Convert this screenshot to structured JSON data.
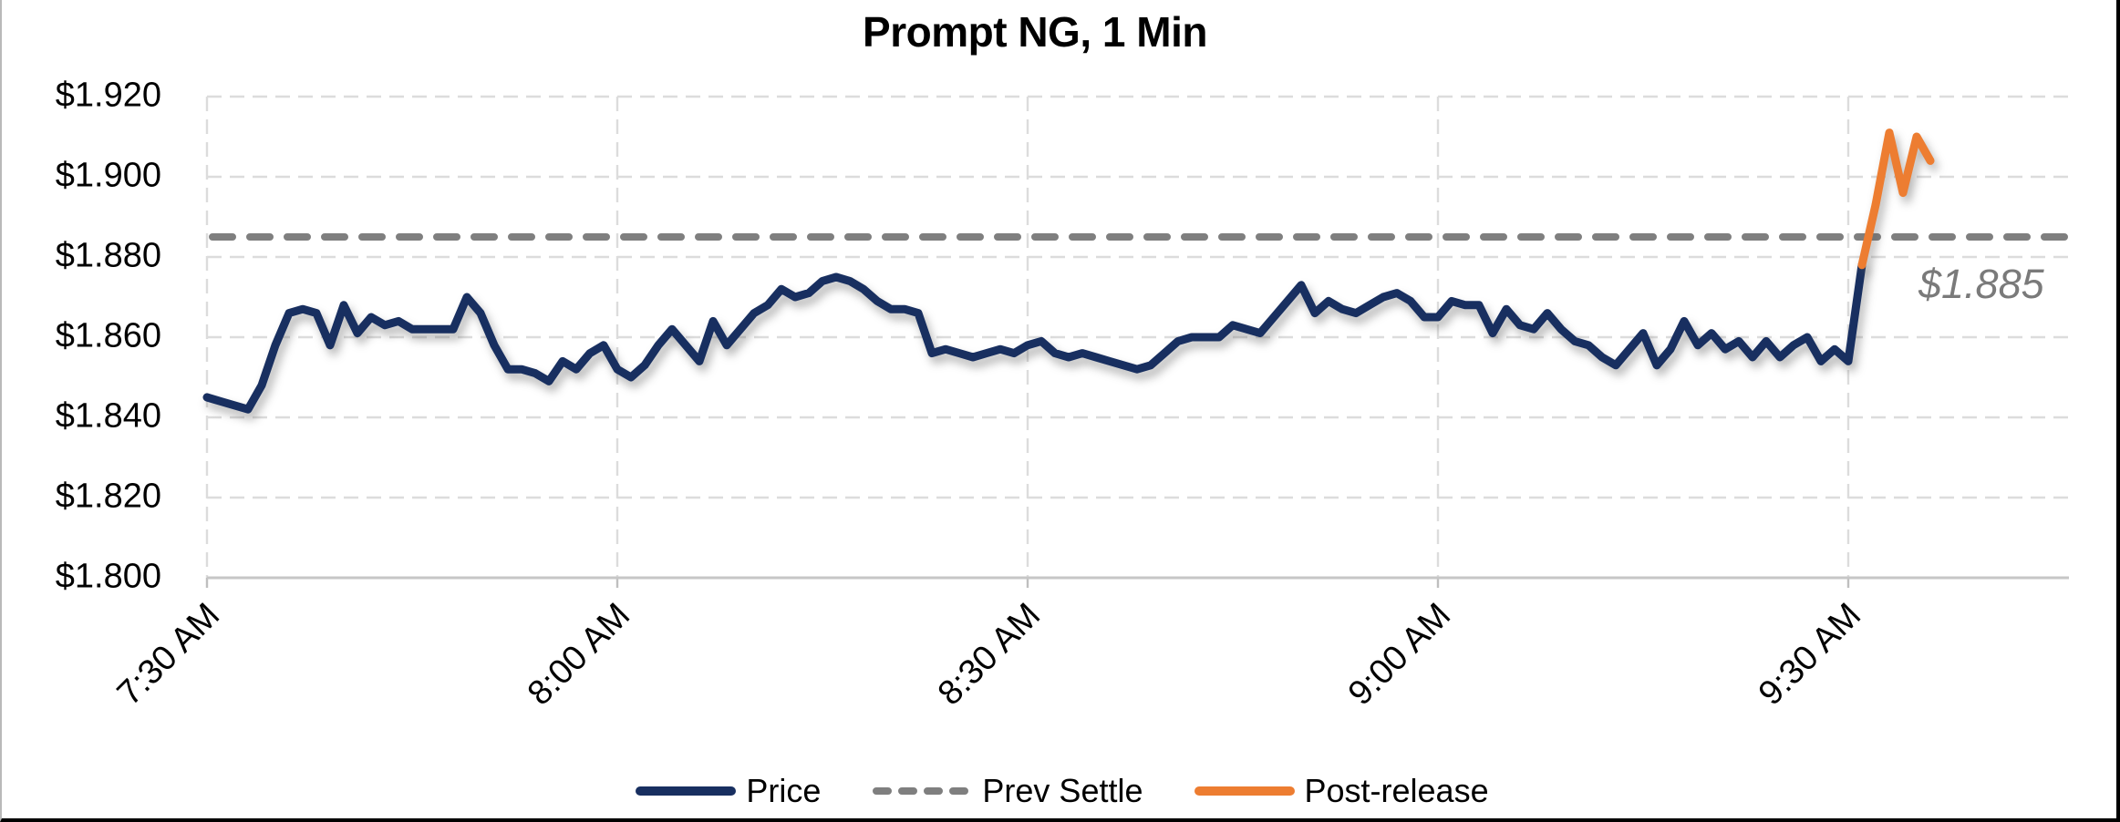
{
  "chart_data": {
    "type": "line",
    "title": "Prompt NG, 1 Min",
    "y_axis": {
      "min": 1.8,
      "max": 1.92,
      "step": 0.02,
      "tick_labels": [
        "$1.920",
        "$1.900",
        "$1.880",
        "$1.860",
        "$1.840",
        "$1.820",
        "$1.800"
      ]
    },
    "x_axis": {
      "tick_labels": [
        "7:30 AM",
        "8:00 AM",
        "8:30 AM",
        "9:00 AM",
        "9:30 AM"
      ],
      "minutes_per_point": 1,
      "minutes_per_tick": 30
    },
    "grid": {
      "horizontal": "dashed",
      "vertical": "dashed",
      "color": "#dcdcdc"
    },
    "prev_settle": {
      "value": 1.885,
      "annotation": "$1.885",
      "color": "#7f7f7f"
    },
    "series": [
      {
        "name": "Price",
        "color": "#182f60",
        "style": "solid",
        "start": "7:30 AM",
        "start_index": 0,
        "values": [
          1.845,
          1.844,
          1.843,
          1.842,
          1.848,
          1.858,
          1.866,
          1.867,
          1.866,
          1.858,
          1.868,
          1.861,
          1.865,
          1.863,
          1.864,
          1.862,
          1.862,
          1.862,
          1.862,
          1.87,
          1.866,
          1.858,
          1.852,
          1.852,
          1.851,
          1.849,
          1.854,
          1.852,
          1.856,
          1.858,
          1.852,
          1.85,
          1.853,
          1.858,
          1.862,
          1.858,
          1.854,
          1.864,
          1.858,
          1.862,
          1.866,
          1.868,
          1.872,
          1.87,
          1.871,
          1.874,
          1.875,
          1.874,
          1.872,
          1.869,
          1.867,
          1.867,
          1.866,
          1.856,
          1.857,
          1.856,
          1.855,
          1.856,
          1.857,
          1.856,
          1.858,
          1.859,
          1.856,
          1.855,
          1.856,
          1.855,
          1.854,
          1.853,
          1.852,
          1.853,
          1.856,
          1.859,
          1.86,
          1.86,
          1.86,
          1.863,
          1.862,
          1.861,
          1.865,
          1.869,
          1.873,
          1.866,
          1.869,
          1.867,
          1.866,
          1.868,
          1.87,
          1.871,
          1.869,
          1.865,
          1.865,
          1.869,
          1.868,
          1.868,
          1.861,
          1.867,
          1.863,
          1.862,
          1.866,
          1.862,
          1.859,
          1.858,
          1.855,
          1.853,
          1.857,
          1.861,
          1.853,
          1.857,
          1.864,
          1.858,
          1.861,
          1.857,
          1.859,
          1.855,
          1.859,
          1.855,
          1.858,
          1.86,
          1.854,
          1.857,
          1.854,
          1.878
        ]
      },
      {
        "name": "Post-release",
        "color": "#ed7d31",
        "style": "solid",
        "start_index": 121,
        "values": [
          1.878,
          1.893,
          1.911,
          1.896,
          1.91,
          1.904
        ]
      }
    ],
    "legend": {
      "position": "bottom",
      "entries": [
        {
          "label": "Price",
          "color": "#182f60",
          "style": "solid"
        },
        {
          "label": "Prev Settle",
          "color": "#7f7f7f",
          "style": "dashed"
        },
        {
          "label": "Post-release",
          "color": "#ed7d31",
          "style": "solid"
        }
      ]
    }
  }
}
